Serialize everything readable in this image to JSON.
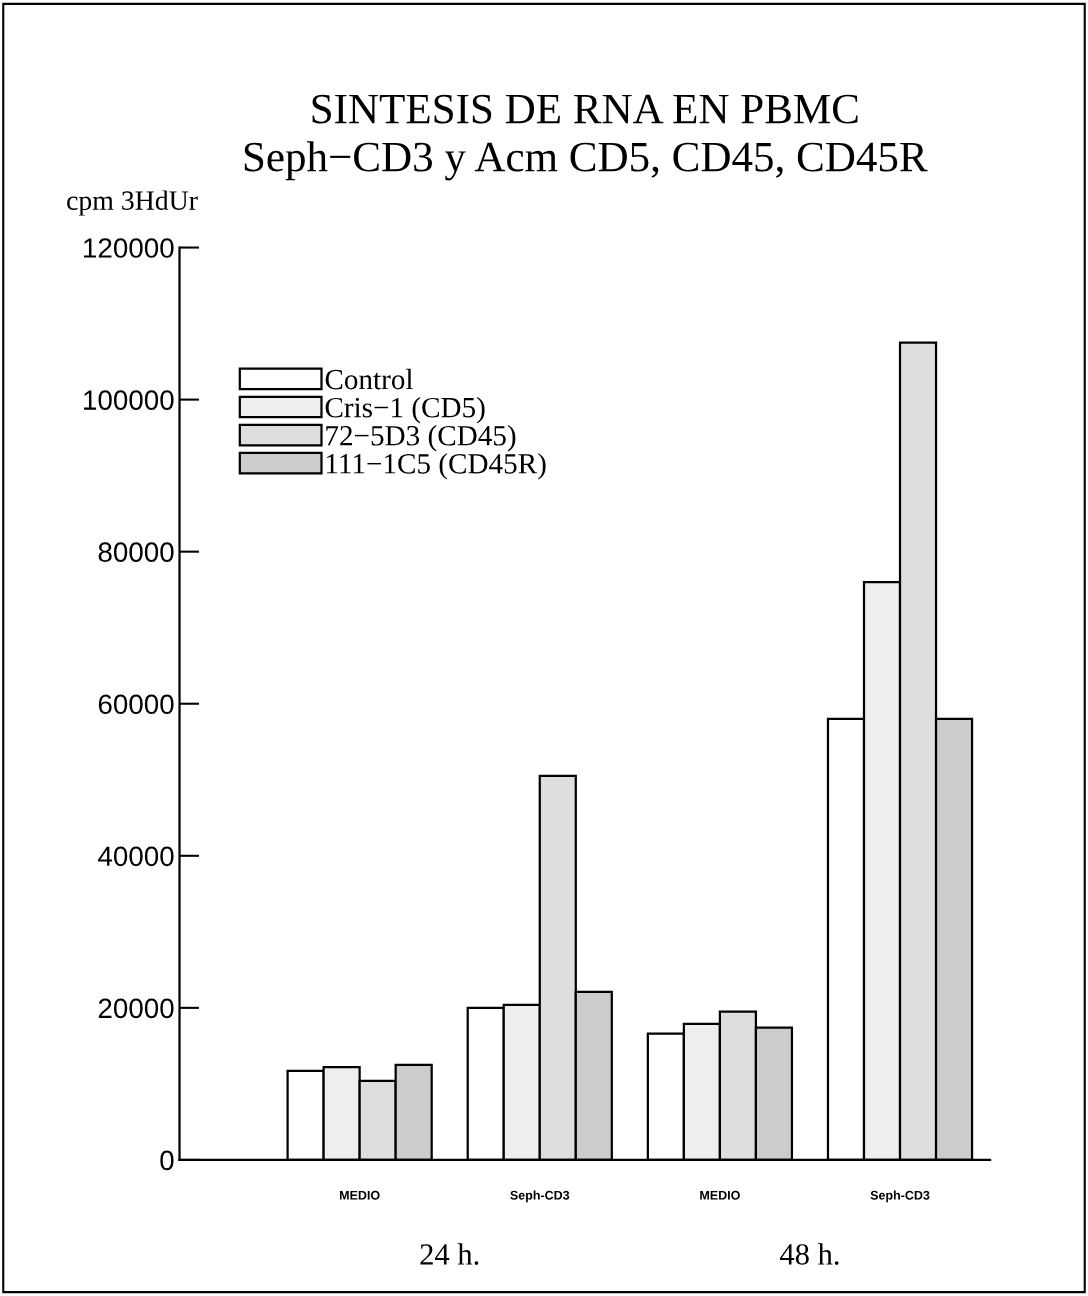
{
  "chart_data": {
    "type": "bar",
    "title": "SINTESIS DE RNA EN PBMC\nSeph−CD3 y Acm CD5, CD45, CD45R",
    "ylabel": "cpm 3HdUr",
    "categories": [
      "MEDIO",
      "Seph-CD3",
      "MEDIO",
      "Seph-CD3"
    ],
    "series": [
      {
        "name": "Control",
        "color": "#ffffff",
        "values": [
          11700,
          20000,
          16600,
          58000
        ]
      },
      {
        "name": "Cris−1 (CD5)",
        "color": "#eeeeee",
        "values": [
          12200,
          20400,
          17900,
          76000
        ]
      },
      {
        "name": "72−5D3 (CD45)",
        "color": "#dedede",
        "values": [
          10400,
          50500,
          19500,
          107500
        ]
      },
      {
        "name": "111−1C5 (CD45R)",
        "color": "#cccccc",
        "values": [
          12500,
          22100,
          17400,
          58000
        ]
      }
    ],
    "annotations": [
      "24 h.",
      "48 h."
    ],
    "ylim": [
      0,
      120000
    ],
    "yticks": [
      0,
      20000,
      40000,
      60000,
      80000,
      100000,
      120000
    ],
    "grid": false,
    "legend": "top left"
  }
}
